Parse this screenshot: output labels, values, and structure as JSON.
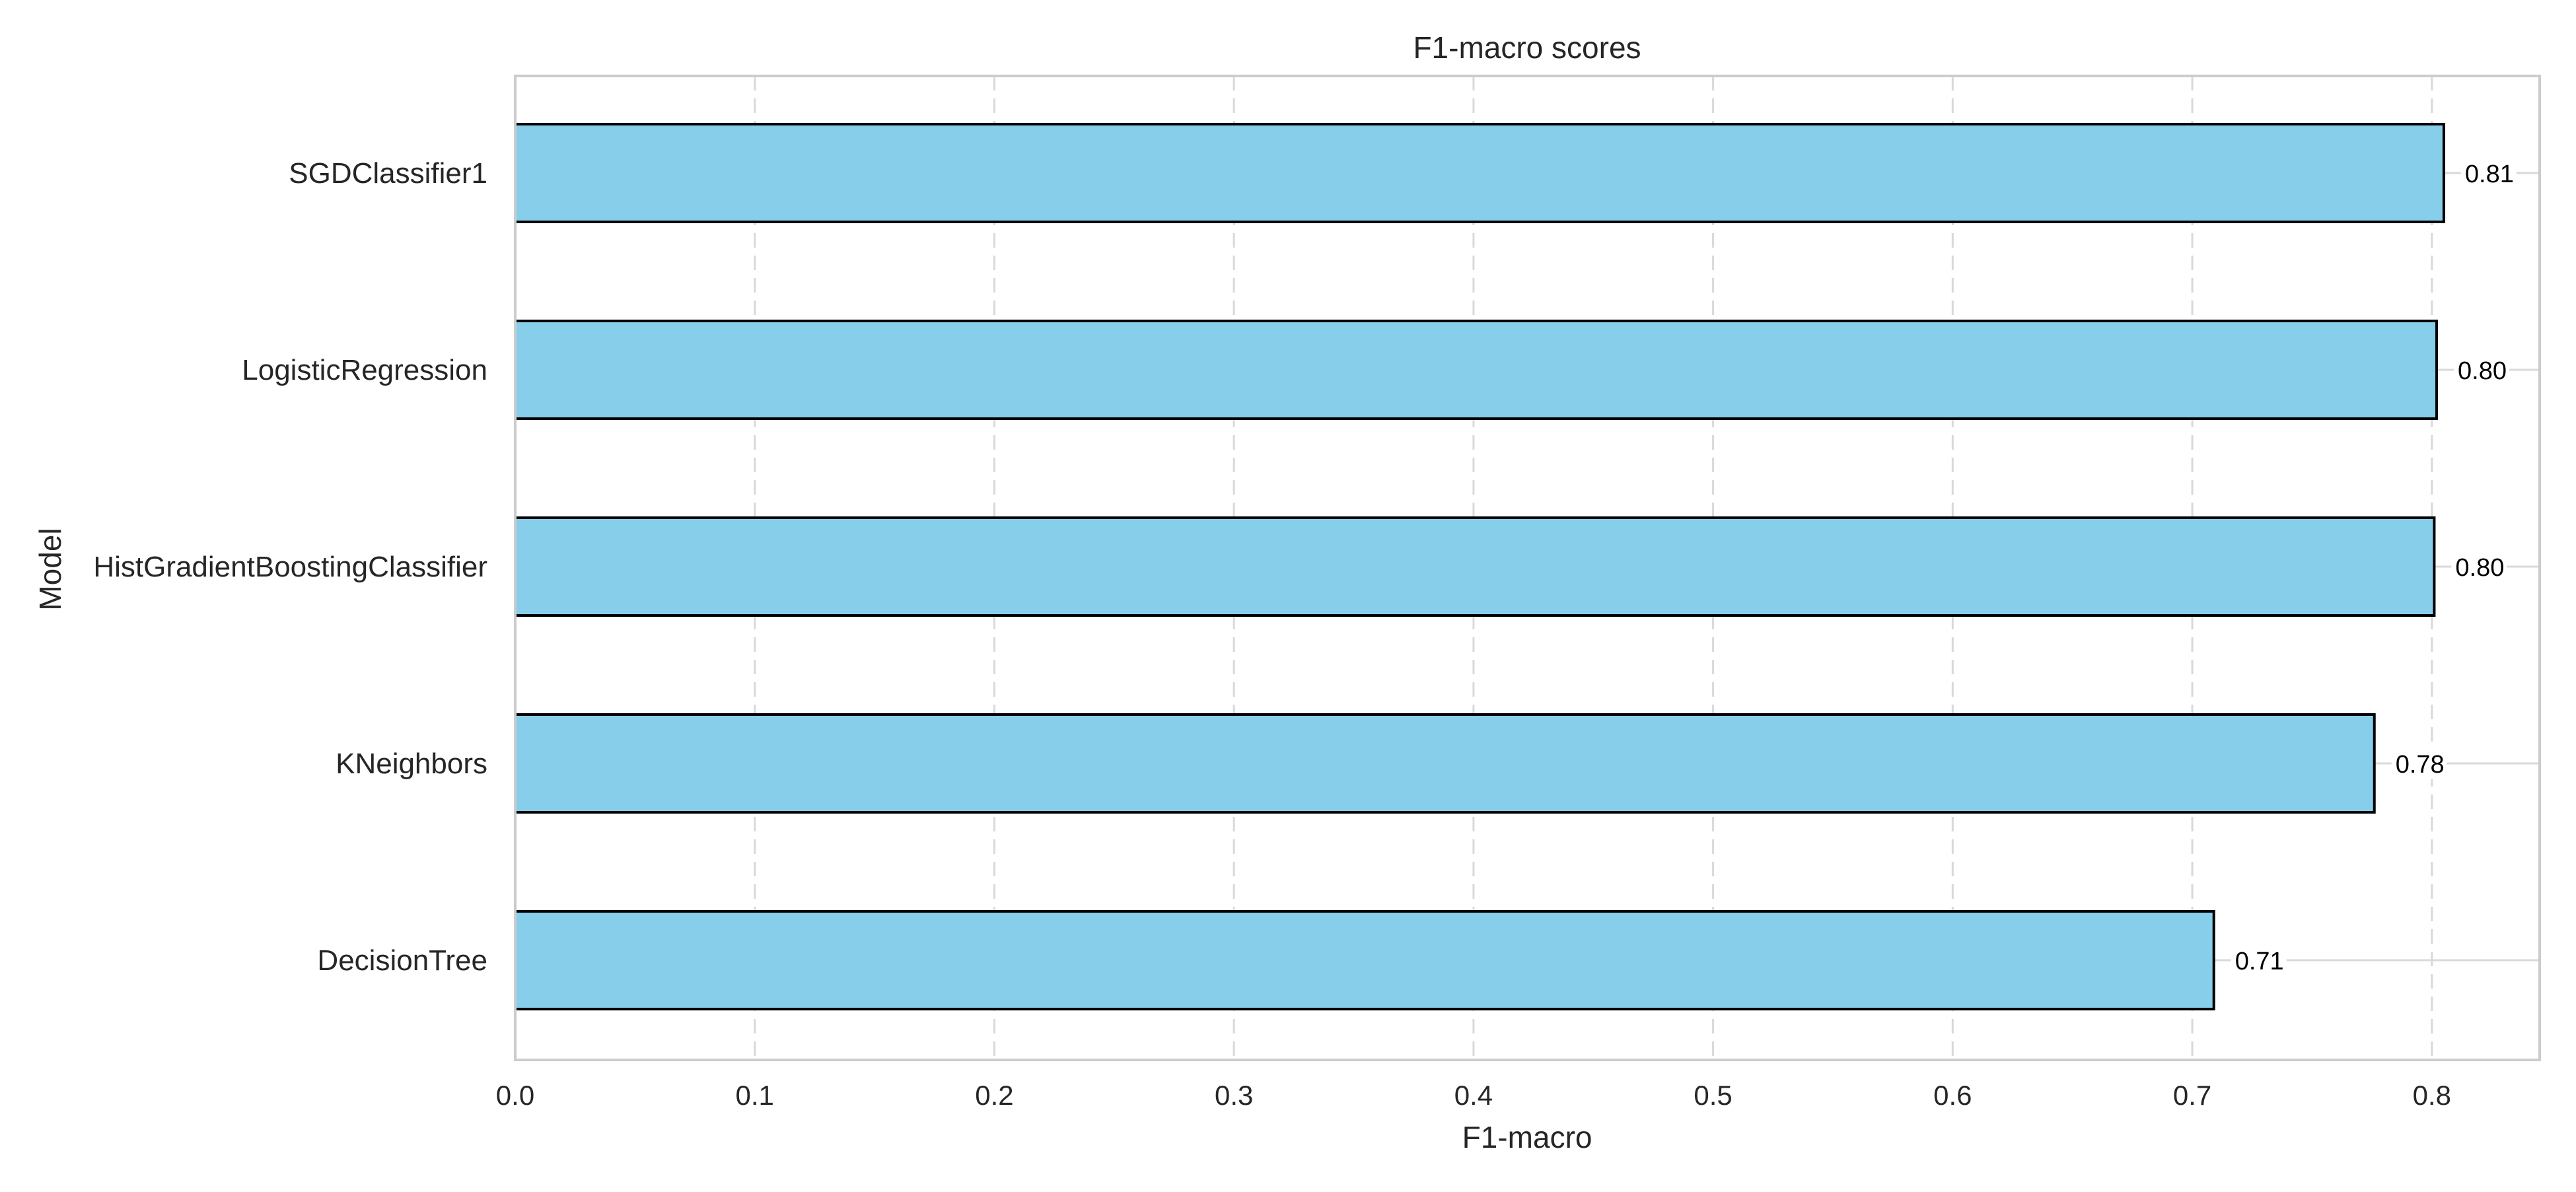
{
  "chart_data": {
    "type": "bar",
    "orientation": "horizontal",
    "title": "F1-macro scores",
    "xlabel": "F1-macro",
    "ylabel": "Model",
    "categories": [
      "SGDClassifier1",
      "LogisticRegression",
      "HistGradientBoostingClassifier",
      "KNeighbors",
      "DecisionTree"
    ],
    "values": [
      0.805,
      0.802,
      0.801,
      0.776,
      0.709
    ],
    "value_labels": [
      "0.81",
      "0.80",
      "0.80",
      "0.78",
      "0.71"
    ],
    "xlim": [
      0.0,
      0.845
    ],
    "xticks": [
      0.0,
      0.1,
      0.2,
      0.3,
      0.4,
      0.5,
      0.6,
      0.7,
      0.8
    ],
    "xtick_labels": [
      "0.0",
      "0.1",
      "0.2",
      "0.3",
      "0.4",
      "0.5",
      "0.6",
      "0.7",
      "0.8"
    ],
    "grid": {
      "x": true,
      "y": true,
      "x_style": "dashed",
      "y_style": "solid"
    },
    "legend": false
  },
  "colors": {
    "bar_fill": "#87ceeb",
    "bar_edge": "#000000",
    "grid": "#d9d9d9",
    "frame": "#cccccc",
    "text": "#262626"
  }
}
